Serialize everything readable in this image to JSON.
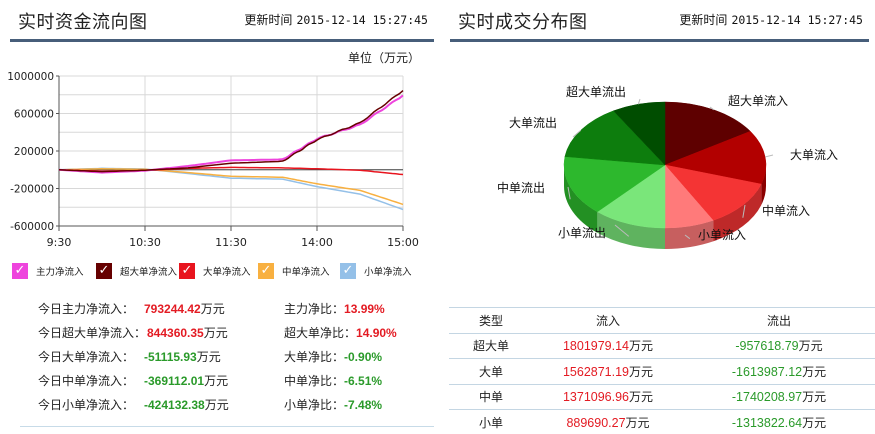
{
  "left_panel": {
    "title": "实时资金流向图",
    "update_label": "更新时间",
    "update_time": "2015-12-14 15:27:45",
    "unit_label": "单位（万元）",
    "legend": [
      {
        "label": "主力净流入",
        "color": "#ee44dd",
        "icon": "checkbox-checked-icon"
      },
      {
        "label": "超大单净流入",
        "color": "#660000",
        "icon": "checkbox-checked-icon"
      },
      {
        "label": "大单净流入",
        "color": "#e8141e",
        "icon": "checkbox-checked-icon"
      },
      {
        "label": "中单净流入",
        "color": "#f8b040",
        "icon": "checkbox-checked-icon"
      },
      {
        "label": "小单净流入",
        "color": "#94c0e8",
        "icon": "checkbox-checked-icon"
      }
    ],
    "stats": [
      {
        "label": "今日主力净流入：",
        "value": "793244.42",
        "unit": "万元",
        "ratio_label": "主力净比：",
        "ratio": "13.99%",
        "sign": "pos"
      },
      {
        "label": "今日超大单净流入：",
        "value": "844360.35",
        "unit": "万元",
        "ratio_label": "超大单净比：",
        "ratio": "14.90%",
        "sign": "pos"
      },
      {
        "label": "今日大单净流入：",
        "value": "-51115.93",
        "unit": "万元",
        "ratio_label": "大单净比：",
        "ratio": "-0.90%",
        "sign": "neg"
      },
      {
        "label": "今日中单净流入：",
        "value": "-369112.01",
        "unit": "万元",
        "ratio_label": "中单净比：",
        "ratio": "-6.51%",
        "sign": "neg"
      },
      {
        "label": "今日小单净流入：",
        "value": "-424132.38",
        "unit": "万元",
        "ratio_label": "小单净比：",
        "ratio": "-7.48%",
        "sign": "neg"
      }
    ]
  },
  "right_panel": {
    "title": "实时成交分布图",
    "update_label": "更新时间",
    "update_time": "2015-12-14 15:27:45",
    "table": {
      "headers": [
        "类型",
        "流入",
        "流出"
      ],
      "unit": "万元",
      "rows": [
        {
          "type": "超大单",
          "inflow": "1801979.14",
          "outflow": "-957618.79"
        },
        {
          "type": "大单",
          "inflow": "1562871.19",
          "outflow": "-1613987.12"
        },
        {
          "type": "中单",
          "inflow": "1371096.96",
          "outflow": "-1740208.97"
        },
        {
          "type": "小单",
          "inflow": "889690.27",
          "outflow": "-1313822.64"
        }
      ]
    }
  },
  "colors": {
    "header_rule": "#475e7a",
    "positive": "#e31b23",
    "negative": "#2a9a2a",
    "grid": "#d8d8d8"
  },
  "chart_data": [
    {
      "type": "line",
      "title": "实时资金流向图",
      "ylabel": "单位（万元）",
      "xlabel": "",
      "x_ticks": [
        "9:30",
        "10:30",
        "11:30",
        "14:00",
        "15:00"
      ],
      "y_ticks": [
        1000000,
        600000,
        200000,
        -200000,
        -600000
      ],
      "ylim": [
        -600000,
        1000000
      ],
      "grid": true,
      "legend_position": "bottom",
      "x": [
        "9:30",
        "10:00",
        "10:30",
        "11:00",
        "11:30",
        "13:30",
        "14:00",
        "14:30",
        "15:00"
      ],
      "series": [
        {
          "name": "主力净流入",
          "color": "#ee44dd",
          "values": [
            0,
            -30000,
            -10000,
            40000,
            100000,
            110000,
            330000,
            480000,
            793244
          ]
        },
        {
          "name": "超大单净流入",
          "color": "#660000",
          "values": [
            0,
            -20000,
            -5000,
            20000,
            70000,
            90000,
            320000,
            500000,
            844360
          ]
        },
        {
          "name": "大单净流入",
          "color": "#e8141e",
          "values": [
            0,
            -15000,
            -8000,
            15000,
            25000,
            20000,
            10000,
            -5000,
            -51116
          ]
        },
        {
          "name": "中单净流入",
          "color": "#f8b040",
          "values": [
            0,
            10000,
            5000,
            -30000,
            -70000,
            -80000,
            -150000,
            -220000,
            -369112
          ]
        },
        {
          "name": "小单净流入",
          "color": "#94c0e8",
          "values": [
            0,
            15000,
            8000,
            -40000,
            -90000,
            -100000,
            -180000,
            -260000,
            -424132
          ]
        }
      ]
    },
    {
      "type": "pie",
      "title": "实时成交分布图",
      "categories": [
        "超大单流入",
        "大单流入",
        "中单流入",
        "小单流入",
        "小单流出",
        "中单流出",
        "大单流出",
        "超大单流出"
      ],
      "values": [
        1801979.14,
        1562871.19,
        1371096.96,
        889690.27,
        1313822.64,
        1740208.97,
        1613987.12,
        957618.79
      ],
      "colors": [
        "#5e0000",
        "#b20000",
        "#f43434",
        "#ff7a7a",
        "#7ae67a",
        "#2db82d",
        "#0d7d0d",
        "#004d00"
      ],
      "style": "3d"
    }
  ]
}
